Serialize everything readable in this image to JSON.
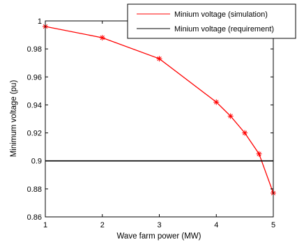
{
  "chart_data": {
    "type": "line",
    "title": "",
    "xlabel": "Wave farm power (MW)",
    "ylabel": "Minimum voltage (pu)",
    "xlim": [
      1,
      5
    ],
    "ylim": [
      0.86,
      1.0
    ],
    "x_ticks": [
      "1",
      "2",
      "3",
      "4",
      "5"
    ],
    "y_ticks": [
      "0.86",
      "0.88",
      "0.9",
      "0.92",
      "0.94",
      "0.96",
      "0.98",
      "1"
    ],
    "grid": false,
    "legend_position": "top-right",
    "series": [
      {
        "name": "Minium voltage (simulation)",
        "color": "#ff0000",
        "marker": "asterisk",
        "x": [
          1,
          2,
          3,
          4,
          4.25,
          4.5,
          4.75,
          5
        ],
        "y": [
          0.996,
          0.988,
          0.973,
          0.942,
          0.932,
          0.92,
          0.905,
          0.877
        ]
      },
      {
        "name": "Minium voltage (requirement)",
        "color": "#000000",
        "marker": "none",
        "x": [
          1,
          5
        ],
        "y": [
          0.9,
          0.9
        ]
      }
    ]
  }
}
